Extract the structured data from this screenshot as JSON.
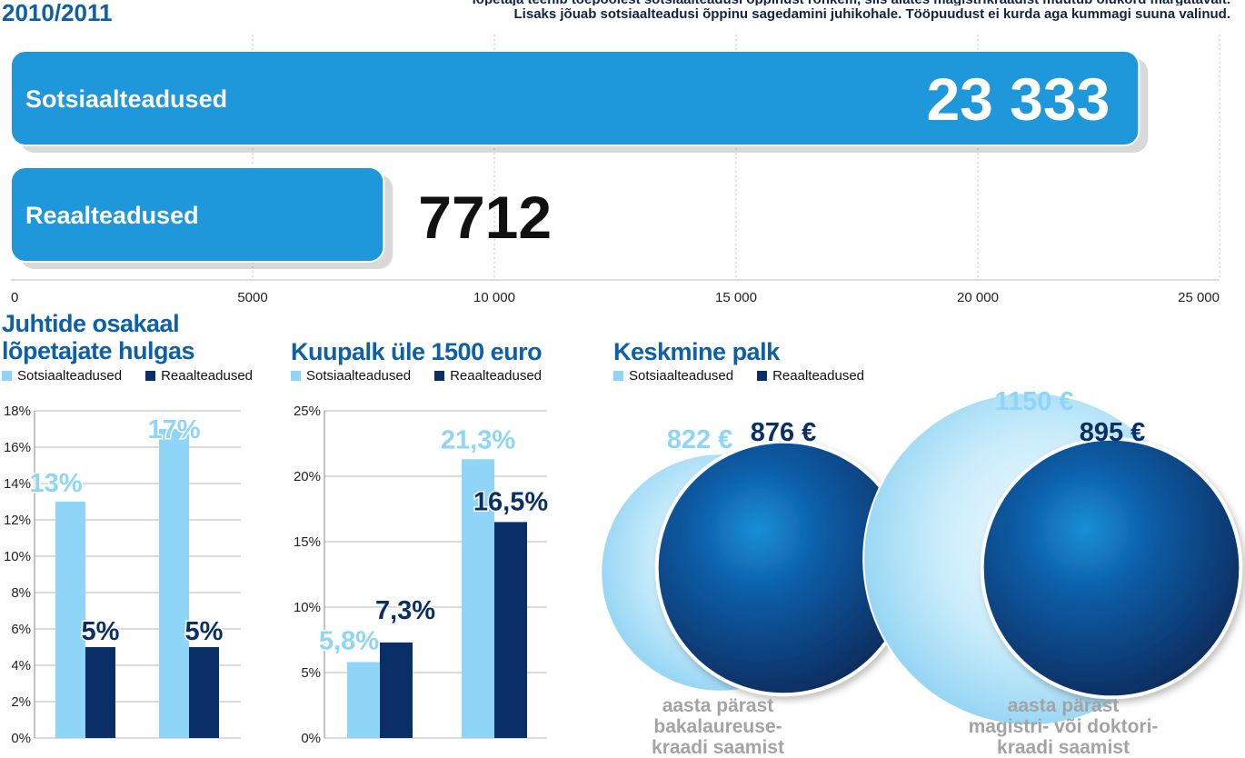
{
  "header": {
    "year": "2010/2011",
    "intro_line1": "lõpetaja teenib tõepoolest sotsiaalteadusi õppinust rohkem, siis alates magistrikraadist muutub olukord märgatavalt.",
    "intro_line2": "Lisaks jõuab sotsiaalteadusi õppinu sagedamini juhikohale. Tööpuudust ei kurda aga kummagi suuna valinud."
  },
  "legend": {
    "social": "Sotsiaalteadused",
    "real": "Reaalteadused"
  },
  "colors": {
    "light": "#8fd5f7",
    "dark": "#0a2f66",
    "bar": "#1e97db",
    "title": "#0d5fa8"
  },
  "chart_data": [
    {
      "type": "bar",
      "orientation": "horizontal",
      "title": "",
      "categories": [
        "Sotsiaalteadused",
        "Reaalteadused"
      ],
      "values": [
        23333,
        7712
      ],
      "value_labels": [
        "23 333",
        "7712"
      ],
      "xlim": [
        0,
        25000
      ],
      "xticks": [
        0,
        5000,
        10000,
        15000,
        20000,
        25000
      ],
      "xtick_labels": [
        "0",
        "5000",
        "10 000",
        "15 000",
        "20 000",
        "25 000"
      ],
      "grid": true
    },
    {
      "type": "bar",
      "title": "Juhtide osakaal lõpetajate hulgas",
      "title_lines": [
        "Juhtide osakaal",
        "lõpetajate hulgas"
      ],
      "categories": [
        "",
        ""
      ],
      "series": [
        {
          "name": "Sotsiaalteadused",
          "values": [
            13,
            17
          ],
          "labels": [
            "13%",
            "17%"
          ]
        },
        {
          "name": "Reaalteadused",
          "values": [
            5,
            5
          ],
          "labels": [
            "5%",
            "5%"
          ]
        }
      ],
      "ylim": [
        0,
        18
      ],
      "yticks": [
        0,
        2,
        4,
        6,
        8,
        10,
        12,
        14,
        16,
        18
      ],
      "ytick_labels": [
        "0%",
        "2%",
        "4%",
        "6%",
        "8%",
        "10%",
        "12%",
        "14%",
        "16%",
        "18%"
      ],
      "grid": true
    },
    {
      "type": "bar",
      "title": "Kuupalk üle 1500 euro",
      "categories": [
        "",
        ""
      ],
      "series": [
        {
          "name": "Sotsiaalteadused",
          "values": [
            5.8,
            21.3
          ],
          "labels": [
            "5,8%",
            "21,3%"
          ]
        },
        {
          "name": "Reaalteadused",
          "values": [
            7.3,
            16.5
          ],
          "labels": [
            "7,3%",
            "16,5%"
          ]
        }
      ],
      "ylim": [
        0,
        25
      ],
      "yticks": [
        0,
        5,
        10,
        15,
        20,
        25
      ],
      "ytick_labels": [
        "0%",
        "5%",
        "10%",
        "15%",
        "20%",
        "25%"
      ],
      "grid": true
    },
    {
      "type": "bubble",
      "title": "Keskmine palk",
      "groups": [
        {
          "caption": [
            "aasta pärast",
            "bakalaureuse-",
            "kraadi saamist"
          ],
          "social": 822,
          "real": 876,
          "social_label": "822 €",
          "real_label": "876 €"
        },
        {
          "caption": [
            "aasta pärast",
            "magistri- või doktori-",
            "kraadi saamist"
          ],
          "social": 1150,
          "real": 895,
          "social_label": "1150 €",
          "real_label": "895 €"
        }
      ]
    }
  ]
}
